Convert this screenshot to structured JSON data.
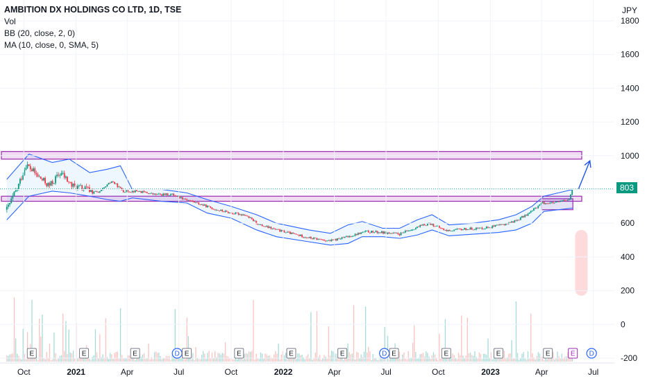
{
  "legend": {
    "title": "AMBITION DX HOLDINGS CO LTD, 1D, TSE",
    "line1": "Vol",
    "line2": "BB (20, close, 2, 0)",
    "line3": "MA (10, close, 0, SMA, 5)"
  },
  "axis": {
    "currency": "JPY",
    "last_price": "803"
  },
  "colors": {
    "up": "#089981",
    "down": "#f23645",
    "band": "#2962ff",
    "zone": "#9c27b0",
    "zone_fill": "#e1bee7",
    "badge": "#089981",
    "earnings_box": "#9c27b0",
    "dividend": "#2962ff"
  },
  "chart_data": {
    "type": "candlestick",
    "title": "AMBITION DX HOLDINGS CO LTD, 1D, TSE",
    "y_unit": "JPY",
    "ylim": [
      -200,
      1800
    ],
    "yticks": [
      -200,
      0,
      200,
      400,
      600,
      800,
      1000,
      1200,
      1400,
      1600,
      1800
    ],
    "xticks": [
      {
        "label": "Oct",
        "date": "2020-10-01",
        "bold": false
      },
      {
        "label": "2021",
        "date": "2021-01-01",
        "bold": true
      },
      {
        "label": "Apr",
        "date": "2021-04-01",
        "bold": false
      },
      {
        "label": "Jul",
        "date": "2021-07-01",
        "bold": false
      },
      {
        "label": "Oct",
        "date": "2021-10-01",
        "bold": false
      },
      {
        "label": "2022",
        "date": "2022-01-01",
        "bold": true
      },
      {
        "label": "Apr",
        "date": "2022-04-01",
        "bold": false
      },
      {
        "label": "Jul",
        "date": "2022-07-01",
        "bold": false
      },
      {
        "label": "Oct",
        "date": "2022-10-01",
        "bold": false
      },
      {
        "label": "2023",
        "date": "2023-01-01",
        "bold": true
      },
      {
        "label": "Apr",
        "date": "2023-04-01",
        "bold": false
      },
      {
        "label": "Jul",
        "date": "2023-07-01",
        "bold": false
      }
    ],
    "price_path": [
      {
        "date": "2020-09-01",
        "close": 680
      },
      {
        "date": "2020-09-20",
        "close": 810
      },
      {
        "date": "2020-10-05",
        "close": 950
      },
      {
        "date": "2020-10-25",
        "close": 880
      },
      {
        "date": "2020-11-15",
        "close": 820
      },
      {
        "date": "2020-12-05",
        "close": 900
      },
      {
        "date": "2020-12-25",
        "close": 820
      },
      {
        "date": "2021-01-20",
        "close": 800
      },
      {
        "date": "2021-02-10",
        "close": 780
      },
      {
        "date": "2021-03-05",
        "close": 850
      },
      {
        "date": "2021-03-25",
        "close": 790
      },
      {
        "date": "2021-04-20",
        "close": 790
      },
      {
        "date": "2021-05-20",
        "close": 770
      },
      {
        "date": "2021-06-20",
        "close": 770
      },
      {
        "date": "2021-07-15",
        "close": 740
      },
      {
        "date": "2021-08-10",
        "close": 710
      },
      {
        "date": "2021-09-05",
        "close": 680
      },
      {
        "date": "2021-10-01",
        "close": 660
      },
      {
        "date": "2021-10-25",
        "close": 650
      },
      {
        "date": "2021-11-20",
        "close": 590
      },
      {
        "date": "2021-12-20",
        "close": 560
      },
      {
        "date": "2022-01-20",
        "close": 535
      },
      {
        "date": "2022-02-20",
        "close": 510
      },
      {
        "date": "2022-03-25",
        "close": 495
      },
      {
        "date": "2022-04-25",
        "close": 520
      },
      {
        "date": "2022-05-25",
        "close": 550
      },
      {
        "date": "2022-06-25",
        "close": 545
      },
      {
        "date": "2022-07-25",
        "close": 535
      },
      {
        "date": "2022-08-20",
        "close": 570
      },
      {
        "date": "2022-09-15",
        "close": 600
      },
      {
        "date": "2022-10-15",
        "close": 555
      },
      {
        "date": "2022-11-15",
        "close": 565
      },
      {
        "date": "2022-12-15",
        "close": 570
      },
      {
        "date": "2023-01-15",
        "close": 585
      },
      {
        "date": "2023-02-15",
        "close": 615
      },
      {
        "date": "2023-03-10",
        "close": 660
      },
      {
        "date": "2023-04-01",
        "close": 720
      },
      {
        "date": "2023-04-25",
        "close": 720
      },
      {
        "date": "2023-05-20",
        "close": 740
      },
      {
        "date": "2023-05-26",
        "close": 803
      }
    ],
    "bollinger": {
      "upper": [
        {
          "date": "2020-09-01",
          "v": 860
        },
        {
          "date": "2020-10-10",
          "v": 1010
        },
        {
          "date": "2020-11-20",
          "v": 960
        },
        {
          "date": "2020-12-20",
          "v": 980
        },
        {
          "date": "2021-01-25",
          "v": 900
        },
        {
          "date": "2021-02-25",
          "v": 920
        },
        {
          "date": "2021-03-20",
          "v": 940
        },
        {
          "date": "2021-04-10",
          "v": 800
        },
        {
          "date": "2021-06-01",
          "v": 800
        },
        {
          "date": "2021-07-15",
          "v": 780
        },
        {
          "date": "2021-08-20",
          "v": 740
        },
        {
          "date": "2021-10-01",
          "v": 700
        },
        {
          "date": "2021-11-15",
          "v": 650
        },
        {
          "date": "2021-12-20",
          "v": 600
        },
        {
          "date": "2022-02-15",
          "v": 560
        },
        {
          "date": "2022-03-25",
          "v": 540
        },
        {
          "date": "2022-04-25",
          "v": 590
        },
        {
          "date": "2022-05-20",
          "v": 610
        },
        {
          "date": "2022-06-25",
          "v": 570
        },
        {
          "date": "2022-07-25",
          "v": 570
        },
        {
          "date": "2022-08-25",
          "v": 620
        },
        {
          "date": "2022-09-20",
          "v": 650
        },
        {
          "date": "2022-10-20",
          "v": 590
        },
        {
          "date": "2022-12-01",
          "v": 600
        },
        {
          "date": "2023-01-15",
          "v": 620
        },
        {
          "date": "2023-02-15",
          "v": 650
        },
        {
          "date": "2023-03-15",
          "v": 700
        },
        {
          "date": "2023-04-05",
          "v": 760
        },
        {
          "date": "2023-05-26",
          "v": 800
        }
      ],
      "lower": [
        {
          "date": "2020-09-01",
          "v": 620
        },
        {
          "date": "2020-10-10",
          "v": 760
        },
        {
          "date": "2020-11-20",
          "v": 790
        },
        {
          "date": "2020-12-20",
          "v": 780
        },
        {
          "date": "2021-01-25",
          "v": 760
        },
        {
          "date": "2021-02-25",
          "v": 740
        },
        {
          "date": "2021-03-20",
          "v": 730
        },
        {
          "date": "2021-04-10",
          "v": 750
        },
        {
          "date": "2021-06-01",
          "v": 730
        },
        {
          "date": "2021-07-15",
          "v": 720
        },
        {
          "date": "2021-08-20",
          "v": 660
        },
        {
          "date": "2021-10-01",
          "v": 630
        },
        {
          "date": "2021-11-15",
          "v": 560
        },
        {
          "date": "2021-12-20",
          "v": 520
        },
        {
          "date": "2022-02-15",
          "v": 490
        },
        {
          "date": "2022-03-25",
          "v": 470
        },
        {
          "date": "2022-04-25",
          "v": 480
        },
        {
          "date": "2022-05-20",
          "v": 520
        },
        {
          "date": "2022-06-25",
          "v": 520
        },
        {
          "date": "2022-07-25",
          "v": 510
        },
        {
          "date": "2022-08-25",
          "v": 530
        },
        {
          "date": "2022-09-20",
          "v": 560
        },
        {
          "date": "2022-10-20",
          "v": 525
        },
        {
          "date": "2022-12-01",
          "v": 535
        },
        {
          "date": "2023-01-15",
          "v": 545
        },
        {
          "date": "2023-02-15",
          "v": 560
        },
        {
          "date": "2023-03-15",
          "v": 600
        },
        {
          "date": "2023-04-05",
          "v": 670
        },
        {
          "date": "2023-05-26",
          "v": 690
        }
      ]
    },
    "zones": [
      {
        "name": "resistance-zone",
        "from_date": "2020-08-15",
        "to_date": "2023-07-01",
        "low": 980,
        "high": 1025
      },
      {
        "name": "support-zone",
        "from_date": "2020-08-15",
        "to_date": "2023-07-01",
        "low": 730,
        "high": 760
      },
      {
        "name": "consolidation-box",
        "from_date": "2023-04-01",
        "to_date": "2023-05-26",
        "low": 680,
        "high": 745
      }
    ],
    "projection_arrow": {
      "from_date": "2023-06-05",
      "from_v": 803,
      "to_date": "2023-06-25",
      "to_v": 970
    },
    "volume_highlight": {
      "date": "2023-06-10",
      "low": 170,
      "high": 560
    },
    "last_price_line": 803,
    "events": [
      {
        "type": "E",
        "date": "2020-10-15"
      },
      {
        "type": "E",
        "date": "2021-01-15"
      },
      {
        "type": "E",
        "date": "2021-04-15"
      },
      {
        "type": "D",
        "date": "2021-06-28"
      },
      {
        "type": "E",
        "date": "2021-07-15"
      },
      {
        "type": "E",
        "date": "2021-10-15"
      },
      {
        "type": "E",
        "date": "2022-01-15"
      },
      {
        "type": "E",
        "date": "2022-04-15"
      },
      {
        "type": "D",
        "date": "2022-06-28"
      },
      {
        "type": "E",
        "date": "2022-07-15"
      },
      {
        "type": "E",
        "date": "2022-10-15"
      },
      {
        "type": "E",
        "date": "2023-01-15"
      },
      {
        "type": "E",
        "date": "2023-04-12"
      },
      {
        "type": "E",
        "date": "2023-05-26",
        "highlight": true
      },
      {
        "type": "D",
        "date": "2023-06-28"
      }
    ]
  }
}
